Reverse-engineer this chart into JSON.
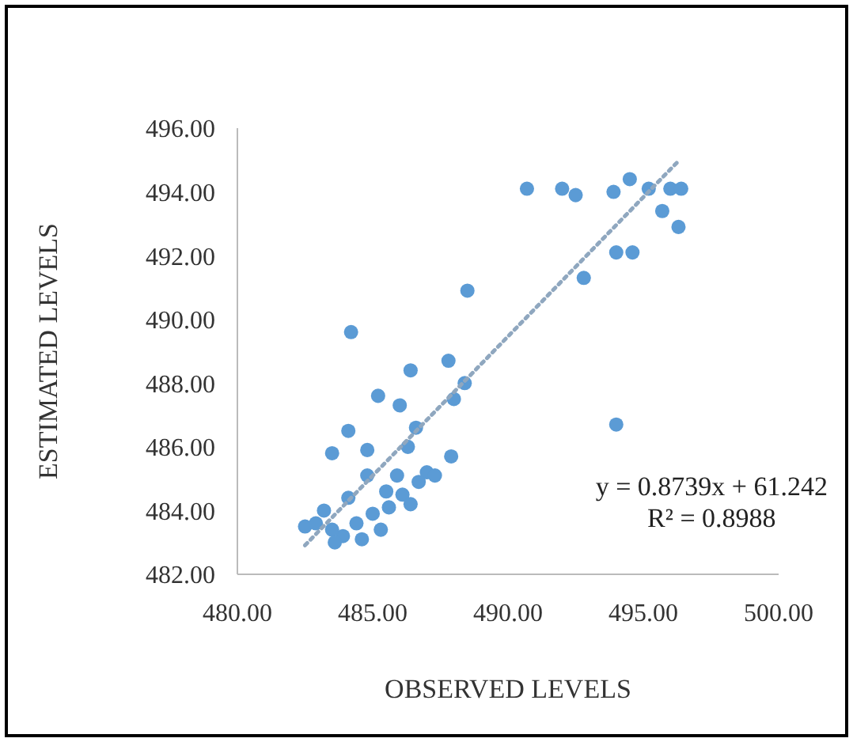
{
  "chart_data": {
    "type": "scatter",
    "xlabel": "OBSERVED LEVELS",
    "ylabel": "ESTIMATED LEVELS",
    "xlim": [
      480,
      500
    ],
    "xticks": [
      {
        "value": 480,
        "label": "480.00"
      },
      {
        "value": 485,
        "label": "485.00"
      },
      {
        "value": 490,
        "label": "490.00"
      },
      {
        "value": 495,
        "label": "495.00"
      },
      {
        "value": 500,
        "label": "500.00"
      }
    ],
    "ylim": [
      482,
      496
    ],
    "yticks": [
      {
        "value": 482,
        "label": "482.00"
      },
      {
        "value": 484,
        "label": "484.00"
      },
      {
        "value": 486,
        "label": "486.00"
      },
      {
        "value": 488,
        "label": "488.00"
      },
      {
        "value": 490,
        "label": "490.00"
      },
      {
        "value": 492,
        "label": "492.00"
      },
      {
        "value": 494,
        "label": "494.00"
      },
      {
        "value": 496,
        "label": "496.00"
      }
    ],
    "grid": false,
    "marker": "circle",
    "annotations": [
      "y = 0.8739x + 61.242",
      "R² = 0.8988"
    ],
    "series": [
      {
        "type": "scatter",
        "color": "#5b9bd5",
        "x": [
          490.7,
          492.0,
          492.5,
          493.9,
          494.5,
          495.2,
          496.0,
          496.4,
          495.7,
          496.3,
          494.0,
          494.6,
          492.8,
          494.0,
          484.2,
          488.5,
          486.4,
          487.8,
          485.2,
          488.0,
          488.4,
          484.1,
          484.8,
          483.5,
          487.9,
          486.0,
          486.6,
          486.3,
          487.0,
          482.5,
          483.9,
          482.9,
          483.5,
          484.4,
          485.0,
          485.6,
          486.1,
          486.7,
          485.3,
          484.6,
          485.9,
          485.5,
          486.4,
          483.2,
          484.1,
          484.8,
          487.3,
          483.6
        ],
        "values": [
          494.1,
          494.1,
          493.9,
          494.0,
          494.4,
          494.1,
          494.1,
          494.1,
          493.4,
          492.9,
          492.1,
          492.1,
          491.3,
          486.7,
          489.6,
          490.9,
          488.4,
          488.7,
          487.6,
          487.5,
          488.0,
          486.5,
          485.9,
          485.8,
          485.7,
          487.3,
          486.6,
          486.0,
          485.2,
          483.5,
          483.2,
          483.6,
          483.4,
          483.6,
          483.9,
          484.1,
          484.5,
          484.9,
          483.4,
          483.1,
          485.1,
          484.6,
          484.2,
          484.0,
          484.4,
          485.1,
          485.1,
          483.0
        ]
      },
      {
        "type": "line",
        "color": "#8fa7bf",
        "line_style": "dotted",
        "marker": "none",
        "x": [
          482.5,
          496.3
        ],
        "values": [
          482.91,
          494.97
        ]
      }
    ]
  }
}
